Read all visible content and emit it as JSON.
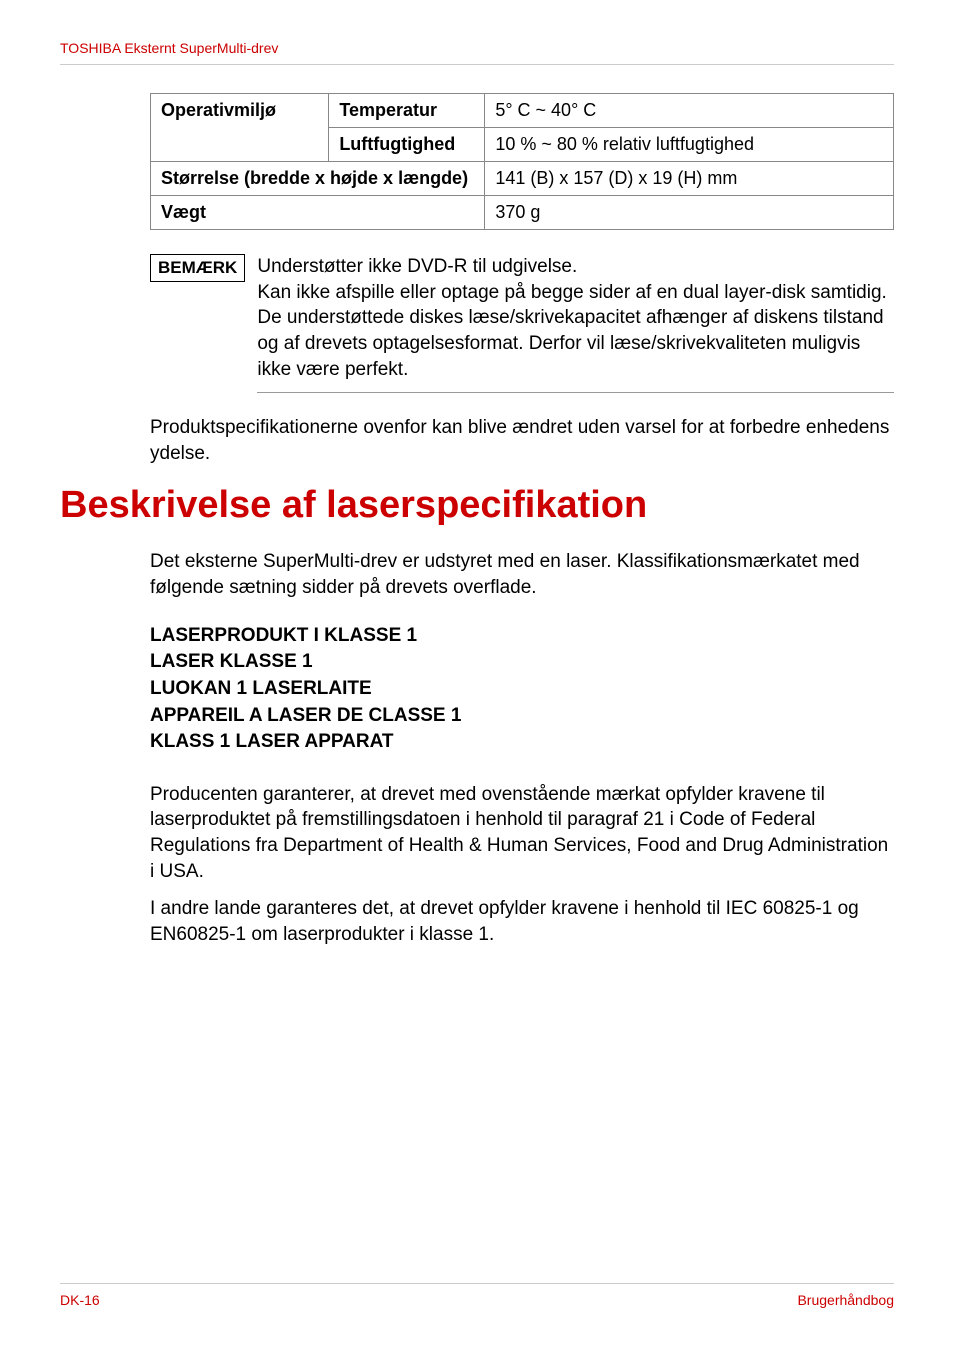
{
  "header": "TOSHIBA Eksternt SuperMulti-drev",
  "table": {
    "r1c1": "Operativmiljø",
    "r1c2": "Temperatur",
    "r1c3": "5° C ~ 40° C",
    "r2c2": "Luftfugtighed",
    "r2c3": "10 % ~ 80 % relativ luftfugtighed",
    "r3c1": "Størrelse (bredde x højde x længde)",
    "r3c3": "141 (B) x 157 (D) x 19 (H) mm",
    "r4c1": "Vægt",
    "r4c3": "370 g"
  },
  "note": {
    "tag": "BEMÆRK",
    "line1": "Understøtter ikke DVD-R til udgivelse.",
    "line2": "Kan ikke afspille eller optage på begge sider af en dual layer-disk samtidig.",
    "line3": "De understøttede diskes læse/skrivekapacitet afhænger af diskens tilstand og af drevets optagelsesformat. Derfor vil læse/skrivekvaliteten muligvis ikke være perfekt."
  },
  "para1": "Produktspecifikationerne ovenfor kan blive ændret uden varsel for at forbedre enhedens ydelse.",
  "h1": "Beskrivelse af laserspecifikation",
  "para2": "Det eksterne SuperMulti-drev er udstyret med en laser. Klassifikationsmærkatet med følgende sætning sidder på drevets overflade.",
  "laser": {
    "l1": "LASERPRODUKT I KLASSE 1",
    "l2": "LASER KLASSE 1",
    "l3": "LUOKAN 1 LASERLAITE",
    "l4": "APPAREIL A LASER DE CLASSE 1",
    "l5": "KLASS 1 LASER APPARAT"
  },
  "para3": "Producenten garanterer, at drevet med ovenstående mærkat opfylder kravene til laserproduktet på fremstillingsdatoen i henhold til paragraf 21 i Code of Federal Regulations fra Department of Health & Human Services, Food and Drug Administration i USA.",
  "para4": "I andre lande garanteres det, at drevet opfylder kravene i henhold til IEC 60825-1 og EN60825-1 om laserprodukter i klasse 1.",
  "footer": {
    "left": "DK-16",
    "right": "Brugerhåndbog"
  }
}
